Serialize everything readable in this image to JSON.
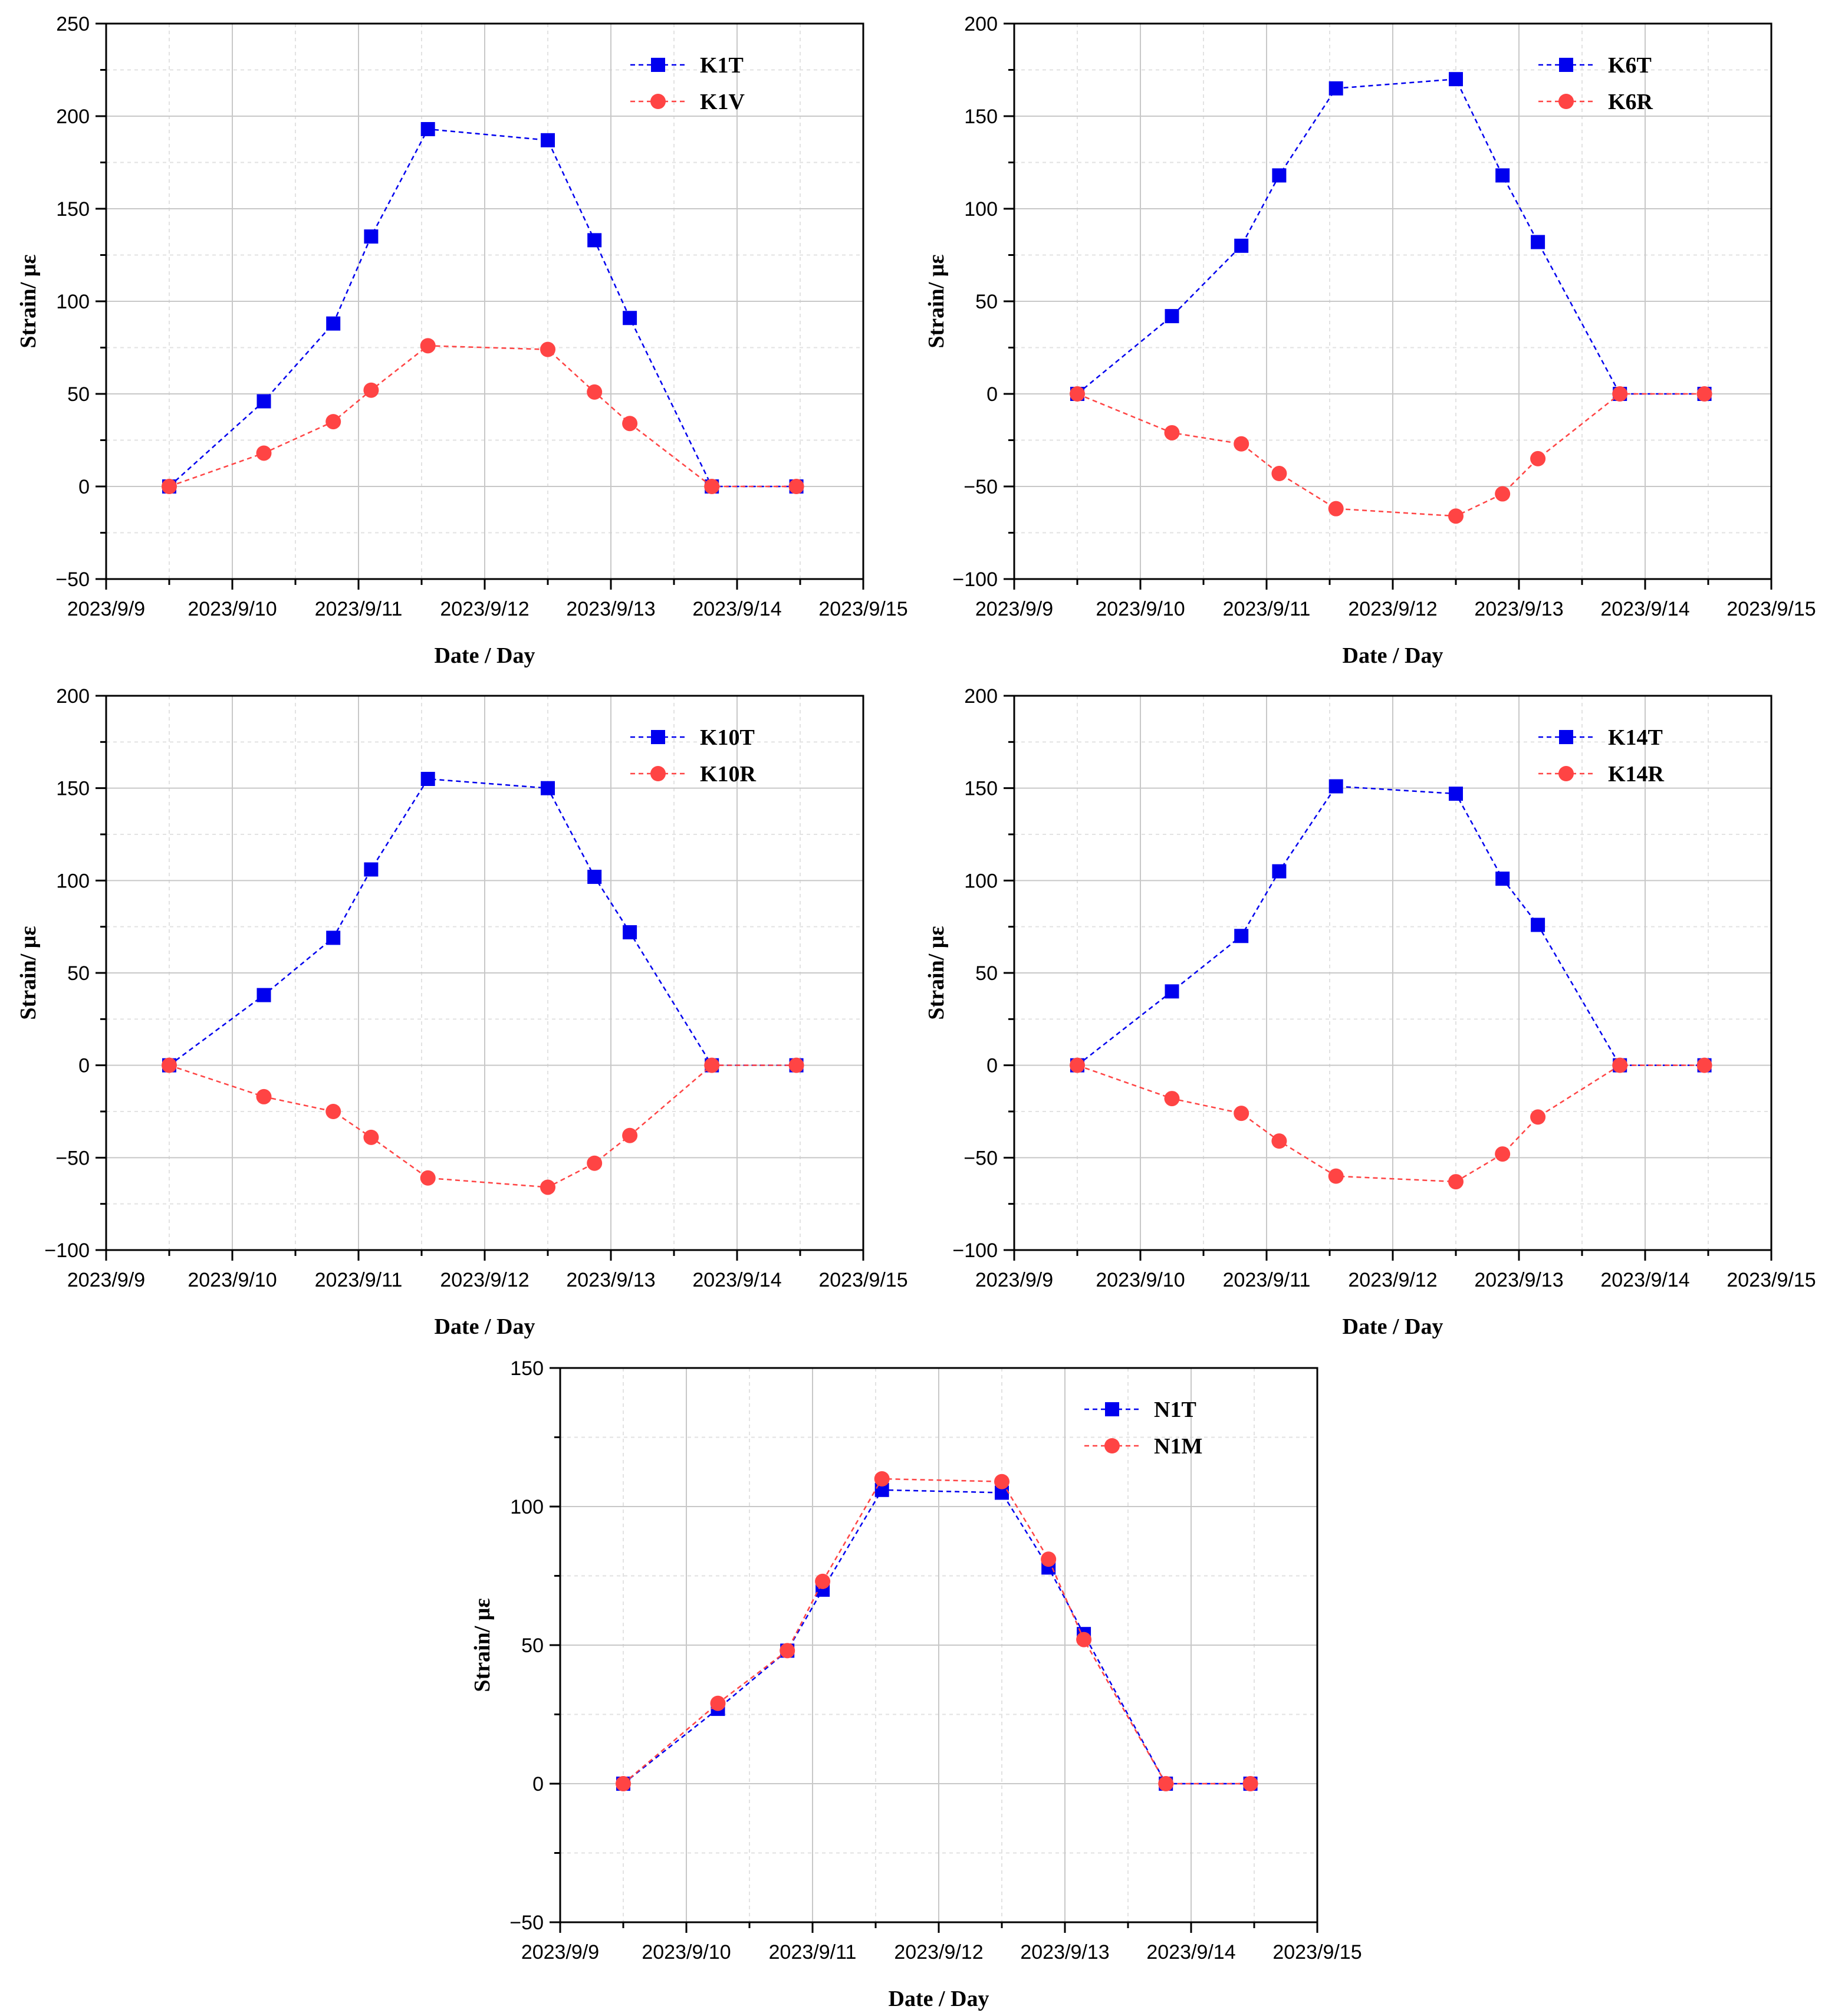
{
  "figure": {
    "colors": {
      "blue": "#0000ee",
      "red": "#ff4444",
      "major_grid": "#c8c8c8",
      "minor_grid": "#e2e2e2",
      "axis": "#000000"
    }
  },
  "chart_data": [
    {
      "type": "line",
      "x_ticks": [
        "2023/9/9",
        "2023/9/10",
        "2023/9/11",
        "2023/9/12",
        "2023/9/13",
        "2023/9/14",
        "2023/9/15"
      ],
      "x": [
        0.5,
        1.25,
        1.8,
        2.1,
        2.55,
        3.5,
        3.87,
        4.15,
        4.8,
        5.47
      ],
      "xlim": [
        0,
        6
      ],
      "ylim": [
        -50,
        250
      ],
      "y_ticks": [
        "−50",
        "0",
        "50",
        "100",
        "150",
        "200",
        "250"
      ],
      "y_tick_values": [
        -50,
        0,
        50,
        100,
        150,
        200,
        250
      ],
      "xlabel": "Date / Day",
      "ylabel": "Strain/ με",
      "legend_position": "top-right",
      "series": [
        {
          "name": "K1T",
          "marker": "square",
          "color": "#0000ee",
          "values": [
            0,
            46,
            88,
            135,
            193,
            187,
            133,
            91,
            0,
            0
          ]
        },
        {
          "name": "K1V",
          "marker": "circle",
          "color": "#ff4444",
          "values": [
            0,
            18,
            35,
            52,
            76,
            74,
            51,
            34,
            0,
            0
          ]
        }
      ]
    },
    {
      "type": "line",
      "x_ticks": [
        "2023/9/9",
        "2023/9/10",
        "2023/9/11",
        "2023/9/12",
        "2023/9/13",
        "2023/9/14",
        "2023/9/15"
      ],
      "x": [
        0.5,
        1.25,
        1.8,
        2.1,
        2.55,
        3.5,
        3.87,
        4.15,
        4.8,
        5.47
      ],
      "xlim": [
        0,
        6
      ],
      "ylim": [
        -100,
        200
      ],
      "y_ticks": [
        "−100",
        "−50",
        "0",
        "50",
        "100",
        "150",
        "200"
      ],
      "y_tick_values": [
        -100,
        -50,
        0,
        50,
        100,
        150,
        200
      ],
      "xlabel": "Date / Day",
      "ylabel": "Strain/ με",
      "legend_position": "top-right",
      "series": [
        {
          "name": "K6T",
          "marker": "square",
          "color": "#0000ee",
          "values": [
            0,
            42,
            80,
            118,
            165,
            170,
            118,
            82,
            0,
            0
          ]
        },
        {
          "name": "K6R",
          "marker": "circle",
          "color": "#ff4444",
          "values": [
            0,
            -21,
            -27,
            -43,
            -62,
            -66,
            -54,
            -35,
            0,
            0
          ]
        }
      ]
    },
    {
      "type": "line",
      "x_ticks": [
        "2023/9/9",
        "2023/9/10",
        "2023/9/11",
        "2023/9/12",
        "2023/9/13",
        "2023/9/14",
        "2023/9/15"
      ],
      "x": [
        0.5,
        1.25,
        1.8,
        2.1,
        2.55,
        3.5,
        3.87,
        4.15,
        4.8,
        5.47
      ],
      "xlim": [
        0,
        6
      ],
      "ylim": [
        -100,
        200
      ],
      "y_ticks": [
        "−100",
        "−50",
        "0",
        "50",
        "100",
        "150",
        "200"
      ],
      "y_tick_values": [
        -100,
        -50,
        0,
        50,
        100,
        150,
        200
      ],
      "xlabel": "Date / Day",
      "ylabel": "Strain/ με",
      "legend_position": "top-right",
      "series": [
        {
          "name": "K10T",
          "marker": "square",
          "color": "#0000ee",
          "values": [
            0,
            38,
            69,
            106,
            155,
            150,
            102,
            72,
            0,
            0
          ]
        },
        {
          "name": "K10R",
          "marker": "circle",
          "color": "#ff4444",
          "values": [
            0,
            -17,
            -25,
            -39,
            -61,
            -66,
            -53,
            -38,
            0,
            0
          ]
        }
      ]
    },
    {
      "type": "line",
      "x_ticks": [
        "2023/9/9",
        "2023/9/10",
        "2023/9/11",
        "2023/9/12",
        "2023/9/13",
        "2023/9/14",
        "2023/9/15"
      ],
      "x": [
        0.5,
        1.25,
        1.8,
        2.1,
        2.55,
        3.5,
        3.87,
        4.15,
        4.8,
        5.47
      ],
      "xlim": [
        0,
        6
      ],
      "ylim": [
        -100,
        200
      ],
      "y_ticks": [
        "−100",
        "−50",
        "0",
        "50",
        "100",
        "150",
        "200"
      ],
      "y_tick_values": [
        -100,
        -50,
        0,
        50,
        100,
        150,
        200
      ],
      "xlabel": "Date / Day",
      "ylabel": "Strain/ με",
      "legend_position": "top-right",
      "series": [
        {
          "name": "K14T",
          "marker": "square",
          "color": "#0000ee",
          "values": [
            0,
            40,
            70,
            105,
            151,
            147,
            101,
            76,
            0,
            0
          ]
        },
        {
          "name": "K14R",
          "marker": "circle",
          "color": "#ff4444",
          "values": [
            0,
            -18,
            -26,
            -41,
            -60,
            -63,
            -48,
            -28,
            0,
            0
          ]
        }
      ]
    },
    {
      "type": "line",
      "x_ticks": [
        "2023/9/9",
        "2023/9/10",
        "2023/9/11",
        "2023/9/12",
        "2023/9/13",
        "2023/9/14",
        "2023/9/15"
      ],
      "x": [
        0.5,
        1.25,
        1.8,
        2.08,
        2.55,
        3.5,
        3.87,
        4.15,
        4.8,
        5.47
      ],
      "xlim": [
        0,
        6
      ],
      "ylim": [
        -50,
        150
      ],
      "y_ticks": [
        "−50",
        "0",
        "50",
        "100",
        "150"
      ],
      "y_tick_values": [
        -50,
        0,
        50,
        100,
        150
      ],
      "xlabel": "Date / Day",
      "ylabel": "Strain/ με",
      "legend_position": "top-right",
      "series": [
        {
          "name": "N1T",
          "marker": "square",
          "color": "#0000ee",
          "values": [
            0,
            27,
            48,
            70,
            106,
            105,
            78,
            54,
            0,
            0
          ]
        },
        {
          "name": "N1M",
          "marker": "circle",
          "color": "#ff4444",
          "values": [
            0,
            29,
            48,
            73,
            110,
            109,
            81,
            52,
            0,
            0
          ]
        }
      ]
    }
  ]
}
